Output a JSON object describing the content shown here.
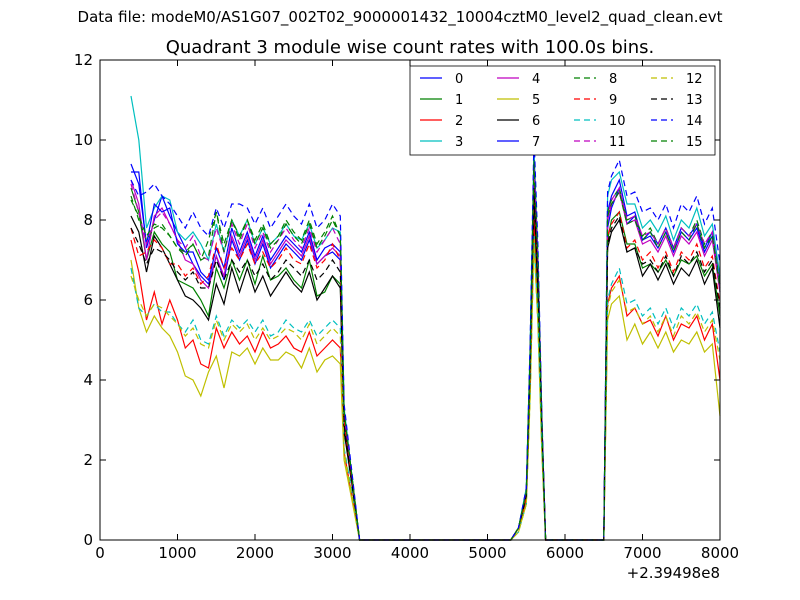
{
  "suptitle": "Data file: modeM0/AS1G07_002T02_9000001432_10004cztM0_level2_quad_clean.evt",
  "chart_data": {
    "type": "line",
    "title": "Quadrant 3 module wise count rates with 100.0s bins.",
    "xlabel": "",
    "ylabel": "",
    "x_offset_label": "+2.39498e8",
    "xlim": [
      0,
      8000
    ],
    "ylim": [
      0,
      12
    ],
    "xticks": [
      "0",
      "1000",
      "2000",
      "3000",
      "4000",
      "5000",
      "6000",
      "7000",
      "8000"
    ],
    "yticks": [
      "0",
      "2",
      "4",
      "6",
      "8",
      "10",
      "12"
    ],
    "grid": false,
    "legend_position": "top-right",
    "x": [
      400,
      500,
      600,
      700,
      800,
      900,
      1000,
      1100,
      1200,
      1300,
      1400,
      1500,
      1600,
      1700,
      1800,
      1900,
      2000,
      2100,
      2200,
      2300,
      2400,
      2500,
      2600,
      2700,
      2800,
      2900,
      3000,
      3100,
      3150,
      3250,
      3350,
      3450,
      5200,
      5300,
      5400,
      5500,
      5550,
      5600,
      5650,
      5700,
      5750,
      5800,
      5900,
      6400,
      6500,
      6550,
      6600,
      6700,
      6800,
      6900,
      7000,
      7100,
      7200,
      7300,
      7400,
      7500,
      7600,
      7700,
      7800,
      7900,
      8000
    ],
    "series": [
      {
        "name": "0",
        "color": "#0000ff",
        "dash": false,
        "values": [
          9.2,
          9.2,
          7.3,
          8.0,
          8.6,
          8.1,
          7.7,
          7.3,
          6.9,
          6.6,
          6.4,
          7.1,
          6.5,
          7.5,
          7.0,
          7.5,
          6.9,
          7.4,
          6.8,
          7.1,
          7.4,
          7.2,
          7.0,
          7.5,
          6.9,
          7.1,
          7.2,
          7.0,
          3.0,
          1.5,
          0,
          0,
          0,
          0,
          0.3,
          1.2,
          4.5,
          9.2,
          6.8,
          3.0,
          0,
          0,
          0,
          0,
          0,
          7.8,
          8.3,
          8.8,
          7.9,
          8.1,
          7.5,
          7.6,
          7.3,
          7.7,
          7.2,
          7.7,
          7.5,
          7.8,
          7.2,
          7.6,
          6.2
        ]
      },
      {
        "name": "1",
        "color": "#008000",
        "dash": false,
        "values": [
          8.8,
          8.2,
          7.0,
          7.7,
          7.4,
          7.2,
          6.5,
          6.4,
          6.3,
          6.0,
          5.6,
          6.8,
          6.3,
          7.0,
          6.5,
          7.0,
          6.4,
          7.1,
          6.5,
          6.6,
          6.8,
          6.5,
          6.3,
          7.0,
          6.1,
          6.2,
          6.6,
          6.4,
          2.8,
          1.4,
          0,
          0,
          0,
          0,
          0.3,
          1.1,
          4.2,
          8.6,
          6.3,
          2.8,
          0,
          0,
          0,
          0,
          0,
          7.5,
          8.0,
          8.2,
          7.4,
          7.4,
          6.8,
          6.9,
          6.7,
          7.0,
          6.6,
          7.0,
          6.9,
          7.1,
          6.6,
          6.9,
          5.6
        ]
      },
      {
        "name": "2",
        "color": "#ff0000",
        "dash": false,
        "values": [
          7.5,
          6.7,
          5.5,
          6.2,
          5.4,
          6.0,
          5.5,
          4.8,
          5.0,
          4.4,
          4.3,
          5.3,
          4.8,
          5.2,
          4.9,
          5.1,
          4.7,
          5.2,
          4.8,
          4.9,
          5.1,
          4.8,
          4.7,
          5.2,
          4.6,
          4.8,
          5.0,
          4.8,
          2.2,
          1.1,
          0,
          0,
          0,
          0,
          0.3,
          1.0,
          3.8,
          8.0,
          5.7,
          2.4,
          0,
          0,
          0,
          0,
          0,
          5.9,
          6.3,
          6.6,
          5.6,
          5.8,
          5.4,
          5.5,
          5.1,
          5.6,
          5.0,
          5.4,
          5.3,
          5.6,
          5.0,
          5.4,
          4.0
        ]
      },
      {
        "name": "3",
        "color": "#00bfbf",
        "dash": false,
        "values": [
          11.1,
          10.0,
          7.8,
          8.3,
          8.6,
          8.5,
          7.7,
          7.5,
          7.7,
          7.4,
          7.0,
          7.9,
          7.2,
          8.0,
          7.6,
          8.0,
          7.4,
          7.8,
          7.4,
          7.6,
          7.9,
          7.6,
          7.5,
          7.9,
          7.3,
          7.5,
          7.8,
          7.7,
          3.3,
          1.6,
          0,
          0,
          0,
          0,
          0.3,
          1.3,
          4.8,
          9.8,
          7.1,
          3.1,
          0,
          0,
          0,
          0,
          0,
          8.6,
          9.0,
          9.2,
          8.4,
          8.4,
          7.8,
          8.0,
          7.7,
          8.1,
          7.5,
          8.0,
          7.8,
          8.3,
          7.6,
          7.9,
          6.6
        ]
      },
      {
        "name": "4",
        "color": "#bf00bf",
        "dash": false,
        "values": [
          9.0,
          8.4,
          7.0,
          8.1,
          8.3,
          7.9,
          7.5,
          7.0,
          6.9,
          6.5,
          6.3,
          7.1,
          6.6,
          7.6,
          7.1,
          7.6,
          7.0,
          7.5,
          6.9,
          7.2,
          7.5,
          7.3,
          7.1,
          7.6,
          6.9,
          7.1,
          7.3,
          7.1,
          3.0,
          1.5,
          0,
          0,
          0,
          0,
          0.3,
          1.2,
          4.5,
          9.3,
          6.9,
          3.0,
          0,
          0,
          0,
          0,
          0,
          8.0,
          8.4,
          8.7,
          7.9,
          8.0,
          7.4,
          7.5,
          7.2,
          7.6,
          7.1,
          7.6,
          7.4,
          7.7,
          7.1,
          7.5,
          6.2
        ]
      },
      {
        "name": "5",
        "color": "#bfbf00",
        "dash": false,
        "values": [
          7.0,
          5.8,
          5.2,
          5.6,
          5.3,
          5.1,
          4.7,
          4.1,
          4.0,
          3.6,
          4.2,
          4.6,
          3.8,
          4.7,
          4.6,
          4.8,
          4.4,
          4.8,
          4.5,
          4.5,
          4.7,
          4.6,
          4.3,
          4.8,
          4.2,
          4.5,
          4.6,
          4.4,
          2.0,
          1.0,
          0,
          0,
          0,
          0,
          0.2,
          0.9,
          3.6,
          7.6,
          5.4,
          2.2,
          0,
          0,
          0,
          0,
          0,
          5.5,
          5.9,
          6.1,
          5.0,
          5.4,
          4.9,
          5.2,
          4.8,
          5.2,
          4.7,
          5.0,
          4.9,
          5.2,
          4.7,
          4.9,
          3.1
        ]
      },
      {
        "name": "6",
        "color": "#000000",
        "dash": false,
        "values": [
          8.1,
          7.7,
          6.7,
          7.6,
          7.3,
          6.9,
          6.5,
          6.1,
          6.0,
          5.8,
          5.5,
          6.4,
          5.9,
          6.8,
          6.2,
          6.8,
          6.2,
          6.6,
          6.1,
          6.4,
          6.7,
          6.4,
          6.2,
          6.7,
          6.0,
          6.3,
          6.6,
          6.3,
          2.7,
          1.4,
          0,
          0,
          0,
          0,
          0.3,
          1.1,
          4.1,
          8.6,
          6.2,
          2.7,
          0,
          0,
          0,
          0,
          0,
          7.3,
          7.7,
          8.0,
          7.2,
          7.3,
          6.6,
          6.9,
          6.5,
          6.9,
          6.4,
          6.8,
          6.6,
          7.0,
          6.4,
          6.8,
          5.3
        ]
      },
      {
        "name": "7",
        "color": "#0000ff",
        "dash": false,
        "values": [
          9.4,
          8.9,
          7.4,
          8.4,
          8.2,
          8.3,
          7.4,
          7.2,
          7.2,
          6.7,
          6.5,
          7.3,
          6.8,
          7.8,
          7.2,
          7.7,
          7.1,
          7.6,
          7.0,
          7.3,
          7.6,
          7.4,
          7.2,
          7.7,
          7.0,
          7.3,
          7.4,
          7.2,
          3.1,
          1.5,
          0,
          0,
          0,
          0,
          0.3,
          1.2,
          4.6,
          9.4,
          7.0,
          3.0,
          0,
          0,
          0,
          0,
          0,
          8.2,
          8.6,
          9.0,
          8.1,
          8.2,
          7.5,
          7.7,
          7.4,
          7.8,
          7.3,
          7.8,
          7.6,
          7.9,
          7.3,
          7.7,
          6.4
        ]
      },
      {
        "name": "8",
        "color": "#008000",
        "dash": true,
        "values": [
          8.6,
          8.0,
          7.5,
          7.8,
          7.9,
          7.6,
          7.3,
          7.2,
          7.4,
          7.0,
          7.5,
          8.2,
          7.4,
          8.0,
          7.6,
          8.0,
          7.5,
          7.9,
          7.4,
          7.6,
          8.0,
          7.7,
          7.5,
          8.0,
          7.4,
          7.7,
          8.1,
          7.6,
          3.2,
          1.6,
          0,
          0,
          0,
          0,
          0.3,
          1.2,
          4.6,
          9.5,
          7.0,
          3.0,
          0,
          0,
          0,
          0,
          0,
          8.2,
          8.5,
          8.8,
          8.0,
          8.1,
          7.6,
          7.8,
          7.4,
          7.8,
          7.3,
          7.8,
          7.6,
          8.0,
          7.4,
          7.7,
          6.4
        ]
      },
      {
        "name": "9",
        "color": "#ff0000",
        "dash": true,
        "values": [
          7.8,
          7.1,
          7.2,
          7.5,
          7.3,
          6.9,
          6.9,
          6.6,
          6.8,
          6.4,
          6.6,
          7.4,
          6.8,
          7.3,
          7.0,
          7.4,
          6.9,
          7.2,
          6.8,
          7.0,
          7.3,
          7.0,
          6.9,
          7.4,
          6.8,
          7.0,
          7.4,
          7.0,
          3.0,
          1.5,
          0,
          0,
          0,
          0,
          0.3,
          1.1,
          4.3,
          9.0,
          6.6,
          2.9,
          0,
          0,
          0,
          0,
          0,
          7.6,
          7.9,
          8.2,
          7.3,
          7.5,
          7.0,
          7.2,
          6.8,
          7.2,
          6.7,
          7.2,
          7.0,
          7.4,
          6.8,
          7.1,
          5.9
        ]
      },
      {
        "name": "10",
        "color": "#00bfbf",
        "dash": true,
        "values": [
          6.8,
          5.8,
          5.6,
          5.9,
          5.7,
          5.7,
          5.4,
          5.2,
          5.5,
          5.0,
          4.9,
          5.6,
          5.1,
          5.5,
          5.3,
          5.5,
          5.2,
          5.5,
          5.1,
          5.2,
          5.5,
          5.3,
          5.2,
          5.5,
          5.1,
          5.3,
          5.5,
          5.3,
          2.3,
          1.2,
          0,
          0,
          0,
          0,
          0.2,
          0.9,
          3.6,
          7.6,
          5.6,
          2.4,
          0,
          0,
          0,
          0,
          0,
          6.0,
          6.4,
          6.8,
          5.9,
          6.0,
          5.6,
          5.8,
          5.4,
          5.8,
          5.3,
          5.8,
          5.6,
          5.9,
          5.4,
          5.7,
          4.7
        ]
      },
      {
        "name": "11",
        "color": "#bf00bf",
        "dash": true,
        "values": [
          8.9,
          8.2,
          7.4,
          8.0,
          8.2,
          7.9,
          7.5,
          7.3,
          7.6,
          7.1,
          7.0,
          7.8,
          7.2,
          7.9,
          7.4,
          7.9,
          7.3,
          7.7,
          7.2,
          7.5,
          7.8,
          7.5,
          7.3,
          7.8,
          7.2,
          7.5,
          7.8,
          7.4,
          3.1,
          1.6,
          0,
          0,
          0,
          0,
          0.3,
          1.2,
          4.5,
          9.4,
          6.9,
          3.0,
          0,
          0,
          0,
          0,
          0,
          8.1,
          8.5,
          8.8,
          8.0,
          8.1,
          7.6,
          7.7,
          7.4,
          7.8,
          7.3,
          7.8,
          7.6,
          7.9,
          7.4,
          7.7,
          6.3
        ]
      },
      {
        "name": "12",
        "color": "#bfbf00",
        "dash": true,
        "values": [
          6.6,
          6.0,
          5.6,
          5.9,
          5.8,
          5.6,
          5.4,
          5.1,
          5.3,
          4.9,
          4.8,
          5.5,
          5.0,
          5.4,
          5.2,
          5.4,
          5.0,
          5.3,
          5.0,
          5.1,
          5.3,
          5.2,
          5.0,
          5.4,
          4.9,
          5.1,
          5.3,
          5.1,
          2.2,
          1.1,
          0,
          0,
          0,
          0,
          0.2,
          0.9,
          3.5,
          7.4,
          5.4,
          2.3,
          0,
          0,
          0,
          0,
          0,
          5.8,
          6.2,
          6.5,
          5.7,
          5.8,
          5.4,
          5.6,
          5.2,
          5.6,
          5.1,
          5.6,
          5.4,
          5.7,
          5.2,
          5.5,
          4.5
        ]
      },
      {
        "name": "13",
        "color": "#000000",
        "dash": true,
        "values": [
          7.8,
          7.4,
          6.9,
          7.3,
          7.2,
          7.0,
          6.7,
          6.5,
          6.7,
          6.3,
          6.3,
          7.0,
          6.5,
          7.0,
          6.7,
          7.0,
          6.6,
          6.9,
          6.5,
          6.7,
          7.0,
          6.8,
          6.6,
          7.0,
          6.5,
          6.7,
          7.0,
          6.7,
          2.9,
          1.4,
          0,
          0,
          0,
          0,
          0.3,
          1.1,
          4.2,
          8.8,
          6.4,
          2.8,
          0,
          0,
          0,
          0,
          0,
          7.4,
          7.8,
          8.1,
          7.2,
          7.3,
          6.9,
          7.0,
          6.7,
          7.1,
          6.6,
          7.1,
          6.9,
          7.2,
          6.7,
          7.0,
          5.8
        ]
      },
      {
        "name": "14",
        "color": "#0000ff",
        "dash": true,
        "values": [
          9.0,
          8.6,
          8.7,
          8.9,
          8.6,
          8.4,
          8.1,
          7.8,
          8.2,
          7.8,
          7.6,
          8.3,
          7.8,
          8.4,
          8.4,
          8.3,
          7.9,
          8.3,
          7.8,
          8.1,
          8.4,
          8.1,
          7.9,
          8.4,
          7.8,
          8.0,
          8.4,
          8.1,
          3.4,
          1.7,
          0,
          0,
          0,
          0,
          0.3,
          1.3,
          4.9,
          10.1,
          7.4,
          3.2,
          0,
          0,
          0,
          0,
          0,
          8.7,
          9.1,
          9.5,
          8.6,
          8.7,
          8.2,
          8.3,
          8.0,
          8.4,
          7.8,
          8.4,
          8.2,
          8.6,
          7.9,
          8.3,
          6.9
        ]
      },
      {
        "name": "15",
        "color": "#008000",
        "dash": true,
        "values": [
          8.5,
          8.1,
          7.6,
          7.9,
          7.8,
          7.6,
          7.3,
          7.1,
          7.4,
          7.0,
          7.1,
          8.2,
          7.2,
          8.0,
          7.5,
          8.0,
          7.4,
          7.8,
          7.3,
          7.5,
          7.9,
          7.6,
          7.4,
          7.9,
          7.3,
          7.6,
          8.0,
          7.6,
          3.2,
          1.6,
          0,
          0,
          0,
          0,
          0.3,
          1.2,
          4.6,
          9.4,
          6.9,
          3.0,
          0,
          0,
          0,
          0,
          0,
          8.1,
          8.4,
          8.7,
          7.9,
          8.0,
          7.5,
          7.7,
          7.3,
          7.7,
          7.2,
          7.7,
          7.5,
          7.9,
          7.3,
          7.6,
          6.3
        ]
      }
    ]
  }
}
